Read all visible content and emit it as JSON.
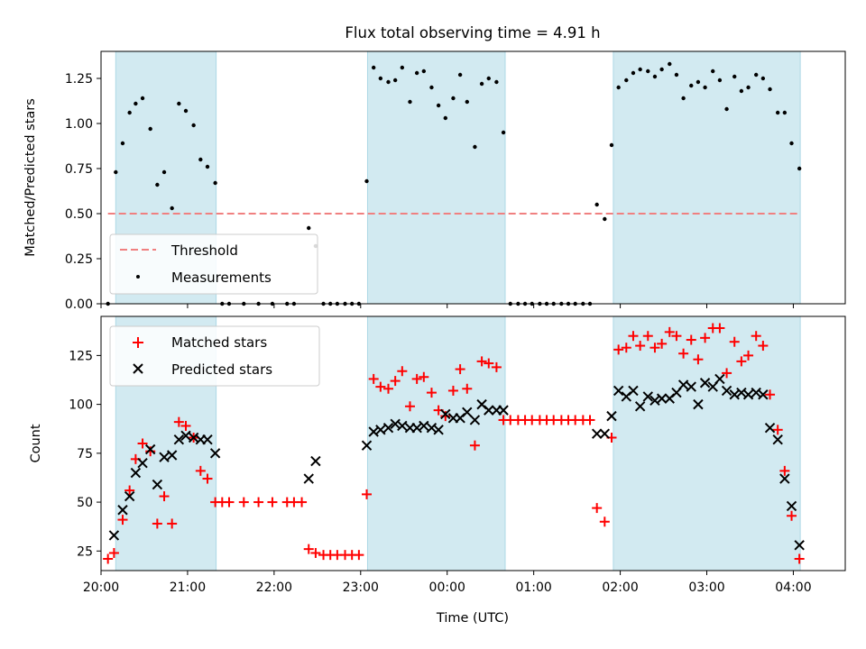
{
  "title": "Flux total observing time = 4.91 h",
  "colors": {
    "shade": "#add8e6",
    "threshold": "#f08080",
    "matched": "#ff0000",
    "predicted": "#000000",
    "measurement": "#000000"
  },
  "chart_data": [
    {
      "type": "scatter",
      "ylabel": "Matched/Predicted stars",
      "ylim": [
        0,
        1.4
      ],
      "yticks": [
        0.0,
        0.25,
        0.5,
        0.75,
        1.0,
        1.25
      ],
      "ytick_labels": [
        "0.00",
        "0.25",
        "0.50",
        "0.75",
        "1.00",
        "1.25"
      ],
      "legend": {
        "placement": "lower-left",
        "entries": [
          "Threshold",
          "Measurements"
        ]
      },
      "threshold": {
        "name": "Threshold",
        "y": 0.5,
        "x_range": [
          20.08,
          4.07
        ]
      },
      "shaded_intervals": [
        [
          20.17,
          21.33
        ],
        [
          23.08,
          0.67
        ],
        [
          1.92,
          4.08
        ]
      ],
      "series": [
        {
          "name": "Measurements",
          "points": [
            [
              20.08,
              0.0
            ],
            [
              20.17,
              0.73
            ],
            [
              20.25,
              0.89
            ],
            [
              20.33,
              1.06
            ],
            [
              20.4,
              1.11
            ],
            [
              20.48,
              1.14
            ],
            [
              20.57,
              0.97
            ],
            [
              20.65,
              0.66
            ],
            [
              20.73,
              0.73
            ],
            [
              20.82,
              0.53
            ],
            [
              20.9,
              1.11
            ],
            [
              20.98,
              1.07
            ],
            [
              21.07,
              0.99
            ],
            [
              21.15,
              0.8
            ],
            [
              21.23,
              0.76
            ],
            [
              21.32,
              0.67
            ],
            [
              21.4,
              0.0
            ],
            [
              21.48,
              0.0
            ],
            [
              21.65,
              0.0
            ],
            [
              21.82,
              0.0
            ],
            [
              21.98,
              0.0
            ],
            [
              22.15,
              0.0
            ],
            [
              22.23,
              0.0
            ],
            [
              22.4,
              0.42
            ],
            [
              22.48,
              0.32
            ],
            [
              22.57,
              0.0
            ],
            [
              22.65,
              0.0
            ],
            [
              22.73,
              0.0
            ],
            [
              22.82,
              0.0
            ],
            [
              22.9,
              0.0
            ],
            [
              22.98,
              0.0
            ],
            [
              23.07,
              0.68
            ],
            [
              23.15,
              1.31
            ],
            [
              23.23,
              1.25
            ],
            [
              23.32,
              1.23
            ],
            [
              23.4,
              1.24
            ],
            [
              23.48,
              1.31
            ],
            [
              23.57,
              1.12
            ],
            [
              23.65,
              1.28
            ],
            [
              23.73,
              1.29
            ],
            [
              23.82,
              1.2
            ],
            [
              23.9,
              1.1
            ],
            [
              23.98,
              1.03
            ],
            [
              0.07,
              1.14
            ],
            [
              0.15,
              1.27
            ],
            [
              0.23,
              1.12
            ],
            [
              0.32,
              0.87
            ],
            [
              0.4,
              1.22
            ],
            [
              0.48,
              1.25
            ],
            [
              0.57,
              1.23
            ],
            [
              0.65,
              0.95
            ],
            [
              0.73,
              0.0
            ],
            [
              0.82,
              0.0
            ],
            [
              0.9,
              0.0
            ],
            [
              0.98,
              0.0
            ],
            [
              1.07,
              0.0
            ],
            [
              1.15,
              0.0
            ],
            [
              1.23,
              0.0
            ],
            [
              1.32,
              0.0
            ],
            [
              1.4,
              0.0
            ],
            [
              1.48,
              0.0
            ],
            [
              1.57,
              0.0
            ],
            [
              1.65,
              0.0
            ],
            [
              1.73,
              0.55
            ],
            [
              1.82,
              0.47
            ],
            [
              1.9,
              0.88
            ],
            [
              1.98,
              1.2
            ],
            [
              2.07,
              1.24
            ],
            [
              2.15,
              1.28
            ],
            [
              2.23,
              1.3
            ],
            [
              2.32,
              1.29
            ],
            [
              2.4,
              1.26
            ],
            [
              2.48,
              1.3
            ],
            [
              2.57,
              1.33
            ],
            [
              2.65,
              1.27
            ],
            [
              2.73,
              1.14
            ],
            [
              2.82,
              1.21
            ],
            [
              2.9,
              1.23
            ],
            [
              2.98,
              1.2
            ],
            [
              3.07,
              1.29
            ],
            [
              3.15,
              1.24
            ],
            [
              3.23,
              1.08
            ],
            [
              3.32,
              1.26
            ],
            [
              3.4,
              1.18
            ],
            [
              3.48,
              1.2
            ],
            [
              3.57,
              1.27
            ],
            [
              3.65,
              1.25
            ],
            [
              3.73,
              1.19
            ],
            [
              3.82,
              1.06
            ],
            [
              3.9,
              1.06
            ],
            [
              3.98,
              0.89
            ],
            [
              4.07,
              0.75
            ]
          ]
        }
      ]
    },
    {
      "type": "scatter",
      "xlabel": "Time (UTC)",
      "ylabel": "Count",
      "ylim": [
        15,
        145
      ],
      "yticks": [
        25,
        50,
        75,
        100,
        125
      ],
      "xticks": [
        "20:00",
        "21:00",
        "22:00",
        "23:00",
        "00:00",
        "01:00",
        "02:00",
        "03:00",
        "04:00"
      ],
      "legend": {
        "placement": "upper-left",
        "entries": [
          "Matched stars",
          "Predicted stars"
        ]
      },
      "shaded_intervals": [
        [
          20.17,
          21.33
        ],
        [
          23.08,
          0.67
        ],
        [
          1.92,
          4.08
        ]
      ],
      "series": [
        {
          "name": "Matched stars",
          "marker": "plus",
          "points": [
            [
              20.08,
              21
            ],
            [
              20.15,
              24
            ],
            [
              20.25,
              41
            ],
            [
              20.33,
              56
            ],
            [
              20.4,
              72
            ],
            [
              20.48,
              80
            ],
            [
              20.57,
              76
            ],
            [
              20.65,
              39
            ],
            [
              20.73,
              53
            ],
            [
              20.82,
              39
            ],
            [
              20.9,
              91
            ],
            [
              20.98,
              89
            ],
            [
              21.07,
              83
            ],
            [
              21.15,
              66
            ],
            [
              21.23,
              62
            ],
            [
              21.32,
              50
            ],
            [
              21.4,
              50
            ],
            [
              21.48,
              50
            ],
            [
              21.65,
              50
            ],
            [
              21.82,
              50
            ],
            [
              21.98,
              50
            ],
            [
              22.15,
              50
            ],
            [
              22.23,
              50
            ],
            [
              22.32,
              50
            ],
            [
              22.4,
              26
            ],
            [
              22.48,
              24
            ],
            [
              22.57,
              23
            ],
            [
              22.65,
              23
            ],
            [
              22.73,
              23
            ],
            [
              22.82,
              23
            ],
            [
              22.9,
              23
            ],
            [
              22.98,
              23
            ],
            [
              23.07,
              54
            ],
            [
              23.15,
              113
            ],
            [
              23.23,
              109
            ],
            [
              23.32,
              108
            ],
            [
              23.4,
              112
            ],
            [
              23.48,
              117
            ],
            [
              23.57,
              99
            ],
            [
              23.65,
              113
            ],
            [
              23.73,
              114
            ],
            [
              23.82,
              106
            ],
            [
              23.9,
              97
            ],
            [
              23.98,
              94
            ],
            [
              0.07,
              107
            ],
            [
              0.15,
              118
            ],
            [
              0.23,
              108
            ],
            [
              0.32,
              79
            ],
            [
              0.4,
              122
            ],
            [
              0.48,
              121
            ],
            [
              0.57,
              119
            ],
            [
              0.65,
              92
            ],
            [
              0.73,
              92
            ],
            [
              0.82,
              92
            ],
            [
              0.9,
              92
            ],
            [
              0.98,
              92
            ],
            [
              1.07,
              92
            ],
            [
              1.15,
              92
            ],
            [
              1.23,
              92
            ],
            [
              1.32,
              92
            ],
            [
              1.4,
              92
            ],
            [
              1.48,
              92
            ],
            [
              1.57,
              92
            ],
            [
              1.65,
              92
            ],
            [
              1.73,
              47
            ],
            [
              1.82,
              40
            ],
            [
              1.9,
              83
            ],
            [
              1.98,
              128
            ],
            [
              2.07,
              129
            ],
            [
              2.15,
              135
            ],
            [
              2.23,
              130
            ],
            [
              2.32,
              135
            ],
            [
              2.4,
              129
            ],
            [
              2.48,
              131
            ],
            [
              2.57,
              137
            ],
            [
              2.65,
              135
            ],
            [
              2.73,
              126
            ],
            [
              2.82,
              133
            ],
            [
              2.9,
              123
            ],
            [
              2.98,
              134
            ],
            [
              3.07,
              139
            ],
            [
              3.15,
              139
            ],
            [
              3.23,
              116
            ],
            [
              3.32,
              132
            ],
            [
              3.4,
              122
            ],
            [
              3.48,
              125
            ],
            [
              3.57,
              135
            ],
            [
              3.65,
              130
            ],
            [
              3.73,
              105
            ],
            [
              3.82,
              87
            ],
            [
              3.9,
              66
            ],
            [
              3.98,
              43
            ],
            [
              4.07,
              21
            ]
          ]
        },
        {
          "name": "Predicted stars",
          "marker": "x",
          "points": [
            [
              20.15,
              33
            ],
            [
              20.25,
              46
            ],
            [
              20.33,
              53
            ],
            [
              20.4,
              65
            ],
            [
              20.48,
              70
            ],
            [
              20.57,
              77
            ],
            [
              20.65,
              59
            ],
            [
              20.73,
              73
            ],
            [
              20.82,
              74
            ],
            [
              20.9,
              82
            ],
            [
              20.98,
              84
            ],
            [
              21.07,
              83
            ],
            [
              21.15,
              82
            ],
            [
              21.23,
              82
            ],
            [
              21.32,
              75
            ],
            [
              22.4,
              62
            ],
            [
              22.48,
              71
            ],
            [
              23.07,
              79
            ],
            [
              23.15,
              86
            ],
            [
              23.23,
              87
            ],
            [
              23.32,
              88
            ],
            [
              23.4,
              90
            ],
            [
              23.48,
              89
            ],
            [
              23.57,
              88
            ],
            [
              23.65,
              88
            ],
            [
              23.73,
              89
            ],
            [
              23.82,
              88
            ],
            [
              23.9,
              87
            ],
            [
              23.98,
              95
            ],
            [
              0.07,
              93
            ],
            [
              0.15,
              93
            ],
            [
              0.23,
              96
            ],
            [
              0.32,
              92
            ],
            [
              0.4,
              100
            ],
            [
              0.48,
              97
            ],
            [
              0.57,
              97
            ],
            [
              0.65,
              97
            ],
            [
              1.73,
              85
            ],
            [
              1.82,
              85
            ],
            [
              1.9,
              94
            ],
            [
              1.98,
              107
            ],
            [
              2.07,
              104
            ],
            [
              2.15,
              107
            ],
            [
              2.23,
              99
            ],
            [
              2.32,
              104
            ],
            [
              2.4,
              102
            ],
            [
              2.48,
              103
            ],
            [
              2.57,
              103
            ],
            [
              2.65,
              106
            ],
            [
              2.73,
              110
            ],
            [
              2.82,
              109
            ],
            [
              2.9,
              100
            ],
            [
              2.98,
              111
            ],
            [
              3.07,
              109
            ],
            [
              3.15,
              113
            ],
            [
              3.23,
              107
            ],
            [
              3.32,
              105
            ],
            [
              3.4,
              106
            ],
            [
              3.48,
              105
            ],
            [
              3.57,
              106
            ],
            [
              3.65,
              105
            ],
            [
              3.73,
              88
            ],
            [
              3.82,
              82
            ],
            [
              3.9,
              62
            ],
            [
              3.98,
              48
            ],
            [
              4.07,
              28
            ]
          ]
        }
      ]
    }
  ]
}
